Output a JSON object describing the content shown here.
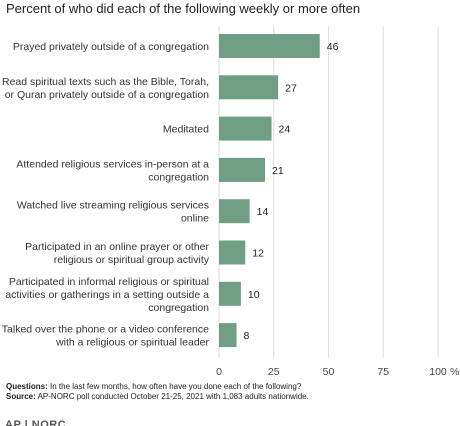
{
  "subtitle": "Percent of who did each of the following weekly or more often",
  "chart_data": {
    "type": "bar",
    "orientation": "horizontal",
    "title": "",
    "subtitle": "Percent of who did each of the following weekly or more often",
    "categories": [
      [
        "Prayed privately outside of a congregation"
      ],
      [
        "Read spiritual texts such as the Bible, Torah,",
        "or Quran privately outside of a congregation"
      ],
      [
        "Meditated"
      ],
      [
        "Attended religious services in-person at a",
        "congregation"
      ],
      [
        "Watched live streaming religious services",
        "online"
      ],
      [
        "Participated in an online prayer or other",
        "religious or spiritual group activity"
      ],
      [
        "Participated in informal religious or spiritual",
        "activities or gatherings in a setting outside a",
        "congregation"
      ],
      [
        "Talked over the phone or a video conference",
        "with a religious or spiritual leader"
      ]
    ],
    "values": [
      46,
      27,
      24,
      21,
      14,
      12,
      10,
      8
    ],
    "data_labels": [
      "46",
      "27",
      "24",
      "21",
      "14",
      "12",
      "10",
      "8"
    ],
    "xlim": [
      0,
      100
    ],
    "ticks": [
      0,
      25,
      50,
      75,
      100
    ],
    "tick_labels": [
      "0",
      "25",
      "50",
      "75",
      "100"
    ],
    "tick_suffix": "%",
    "bar_color": "#6f9e84",
    "grid_color": "#dddddd",
    "grid": true
  },
  "notes": {
    "questions_label": "Questions:",
    "questions_text": "In the last few months, how often have you done each of the following?",
    "source_label": "Source:",
    "source_text": "AP-NORC poll conducted October 21-25, 2021 with 1,083 adults nationwide."
  },
  "logo": "AP | NORC"
}
